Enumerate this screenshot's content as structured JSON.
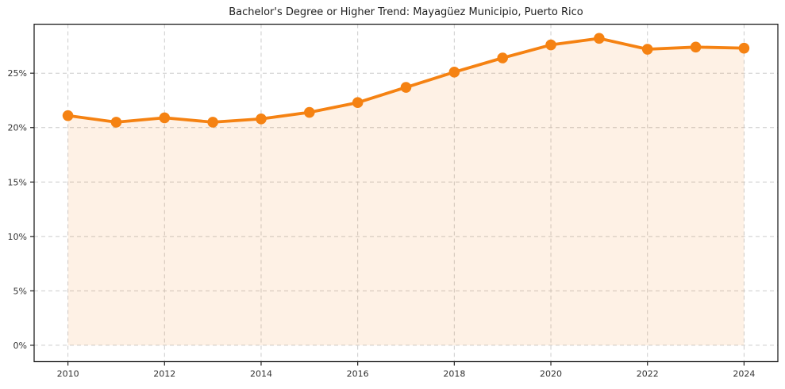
{
  "header": {
    "title": "Bachelor's Degree or Higher Trend: Mayagüez Municipio, Puerto Rico"
  },
  "chart_data": {
    "type": "line",
    "title": "Bachelor's Degree or Higher Trend: Mayagüez Municipio, Puerto Rico",
    "x": [
      2010,
      2011,
      2012,
      2013,
      2014,
      2015,
      2016,
      2017,
      2018,
      2019,
      2020,
      2021,
      2022,
      2023,
      2024
    ],
    "values": [
      21.1,
      20.5,
      20.9,
      20.5,
      20.8,
      21.4,
      22.3,
      23.7,
      25.1,
      26.4,
      27.6,
      28.2,
      27.2,
      27.4,
      27.3
    ],
    "unit": "%",
    "xlabel": "",
    "ylabel": "",
    "xlim": [
      2009.3,
      2024.7
    ],
    "ylim": [
      -1.5,
      29.5
    ],
    "x_ticks": [
      2010,
      2012,
      2014,
      2016,
      2018,
      2020,
      2022,
      2024
    ],
    "x_tick_labels": [
      "2010",
      "2012",
      "2014",
      "2016",
      "2018",
      "2020",
      "2022",
      "2024"
    ],
    "y_ticks": [
      0,
      5,
      10,
      15,
      20,
      25
    ],
    "y_tick_labels": [
      "0%",
      "5%",
      "10%",
      "15%",
      "20%",
      "25%"
    ],
    "grid": true,
    "grid_style": "dashed",
    "legend": false,
    "area_fill": true,
    "area_fill_baseline": 0,
    "colors": {
      "line": "#f58212",
      "marker": "#f58212",
      "area_fill": "#faf0e4",
      "grid": "#cccccc",
      "spine": "#222222",
      "tick_label": "#333333",
      "title": "#222222",
      "background": "#ffffff"
    }
  }
}
